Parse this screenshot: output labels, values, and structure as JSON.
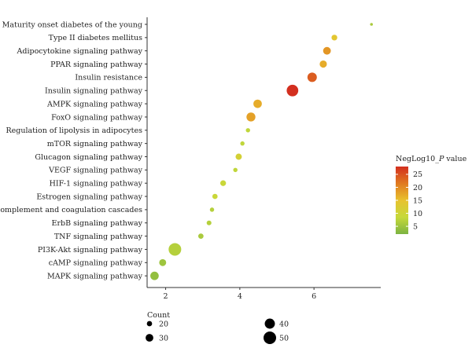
{
  "chart_data": {
    "type": "scatter",
    "title": "",
    "xlabel": "",
    "ylabel": "",
    "xlim": [
      1.5,
      7.8
    ],
    "x_ticks": [
      2,
      4,
      6
    ],
    "categories": [
      "Maturity onset diabetes of the young",
      "Type II diabetes mellitus",
      "Adipocytokine signaling pathway",
      "PPAR signaling pathway",
      "Insulin resistance",
      "Insulin signaling pathway",
      "AMPK signaling pathway",
      "FoxO signaling pathway",
      "Regulation of lipolysis in adipocytes",
      "mTOR signaling pathway",
      "Glucagon signaling pathway",
      "VEGF signaling pathway",
      "HIF-1 signaling pathway",
      "Estrogen signaling pathway",
      "Complement and coagulation cascades",
      "ErbB signaling pathway",
      "TNF signaling pathway",
      "PI3K-Akt signaling pathway",
      "cAMP signaling pathway",
      "MAPK signaling pathway"
    ],
    "points": [
      {
        "x": 7.55,
        "neglog10p": 6,
        "count": 10
      },
      {
        "x": 6.55,
        "neglog10p": 14,
        "count": 22
      },
      {
        "x": 6.35,
        "neglog10p": 19,
        "count": 30
      },
      {
        "x": 6.25,
        "neglog10p": 17,
        "count": 28
      },
      {
        "x": 5.95,
        "neglog10p": 24,
        "count": 37
      },
      {
        "x": 5.42,
        "neglog10p": 28,
        "count": 46
      },
      {
        "x": 4.48,
        "neglog10p": 17,
        "count": 33
      },
      {
        "x": 4.3,
        "neglog10p": 18,
        "count": 35
      },
      {
        "x": 4.22,
        "neglog10p": 8,
        "count": 16
      },
      {
        "x": 4.07,
        "neglog10p": 8,
        "count": 16
      },
      {
        "x": 3.97,
        "neglog10p": 11,
        "count": 24
      },
      {
        "x": 3.88,
        "neglog10p": 8,
        "count": 16
      },
      {
        "x": 3.55,
        "neglog10p": 9,
        "count": 22
      },
      {
        "x": 3.33,
        "neglog10p": 9,
        "count": 20
      },
      {
        "x": 3.25,
        "neglog10p": 7,
        "count": 16
      },
      {
        "x": 3.17,
        "neglog10p": 7,
        "count": 18
      },
      {
        "x": 2.95,
        "neglog10p": 6,
        "count": 20
      },
      {
        "x": 2.25,
        "neglog10p": 7,
        "count": 50
      },
      {
        "x": 1.92,
        "neglog10p": 5,
        "count": 27
      },
      {
        "x": 1.7,
        "neglog10p": 4,
        "count": 33
      }
    ],
    "color_legend": {
      "title_prefix": "NegLog10_",
      "title_italic": "P",
      "title_suffix": " value",
      "ticks": [
        5,
        10,
        15,
        20,
        25
      ],
      "range": [
        2,
        28
      ],
      "colors": [
        "#7cb342",
        "#c6d93a",
        "#e8c22e",
        "#e07a20",
        "#d32f1f"
      ]
    },
    "size_legend": {
      "title": "Count",
      "entries": [
        20,
        40,
        30,
        50
      ]
    },
    "grid": false,
    "legend_position": "right"
  }
}
